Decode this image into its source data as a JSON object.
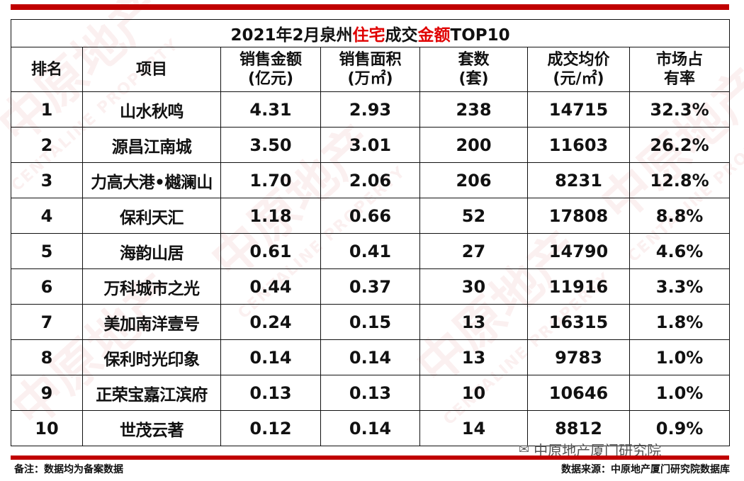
{
  "title": {
    "prefix": "2021年2月泉州",
    "red1": "住宅",
    "middle": "成交",
    "red2": "金额",
    "suffix": "TOP10"
  },
  "headers": {
    "rank": "排名",
    "project": "项目",
    "sales_amount": [
      "销售金额",
      "(亿元)"
    ],
    "sales_area": [
      "销售面积",
      "(万㎡)"
    ],
    "units": [
      "套数",
      "(套)"
    ],
    "avg_price": [
      "成交均价",
      "(元/㎡)"
    ],
    "market_share": [
      "市场占",
      "有率"
    ]
  },
  "rows": [
    {
      "rank": "1",
      "project": "山水秋鸣",
      "amount": "4.31",
      "area": "2.93",
      "units": "238",
      "price": "14715",
      "share": "32.3%"
    },
    {
      "rank": "2",
      "project": "源昌江南城",
      "amount": "3.50",
      "area": "3.01",
      "units": "200",
      "price": "11603",
      "share": "26.2%"
    },
    {
      "rank": "3",
      "project": "力高大港•樾澜山",
      "amount": "1.70",
      "area": "2.06",
      "units": "206",
      "price": "8231",
      "share": "12.8%"
    },
    {
      "rank": "4",
      "project": "保利天汇",
      "amount": "1.18",
      "area": "0.66",
      "units": "52",
      "price": "17808",
      "share": "8.8%"
    },
    {
      "rank": "5",
      "project": "海韵山居",
      "amount": "0.61",
      "area": "0.41",
      "units": "27",
      "price": "14790",
      "share": "4.6%"
    },
    {
      "rank": "6",
      "project": "万科城市之光",
      "amount": "0.44",
      "area": "0.37",
      "units": "30",
      "price": "11916",
      "share": "3.3%"
    },
    {
      "rank": "7",
      "project": "美加南洋壹号",
      "amount": "0.24",
      "area": "0.15",
      "units": "13",
      "price": "16315",
      "share": "1.8%"
    },
    {
      "rank": "8",
      "project": "保利时光印象",
      "amount": "0.14",
      "area": "0.14",
      "units": "13",
      "price": "9783",
      "share": "1.0%"
    },
    {
      "rank": "9",
      "project": "正荣宝嘉江滨府",
      "amount": "0.13",
      "area": "0.13",
      "units": "10",
      "price": "10646",
      "share": "1.0%"
    },
    {
      "rank": "10",
      "project": "世茂云著",
      "amount": "0.12",
      "area": "0.14",
      "units": "14",
      "price": "8812",
      "share": "0.9%"
    }
  ],
  "footer": {
    "note": "备注：数据均为备案数据",
    "source": "数据来源：中原地产厦门研究院数据库",
    "wechat_account": "中原地产厦门研究院"
  },
  "watermark": {
    "cn": "中原地产",
    "en": "CENTALINE PROPERTY"
  },
  "colors": {
    "accent": "#c00000",
    "title_highlight": "#e00000"
  }
}
